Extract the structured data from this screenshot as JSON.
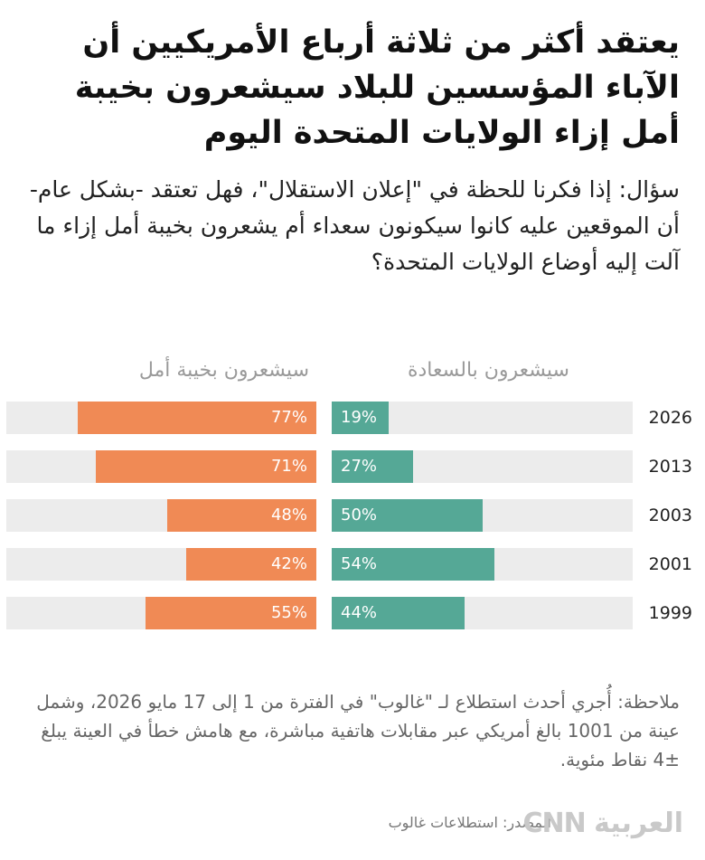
{
  "title": "يعتقد أكثر من ثلاثة أرباع الأمريكيين أن الآباء المؤسسين للبلاد سيشعرون بخيبة أمل إزاء الولايات المتحدة اليوم",
  "question": "سؤال: إذا فكرنا للحظة في \"إعلان الاستقلال\"، فهل تعتقد -بشكل عام- أن الموقعين عليه كانوا سيكونون سعداء أم يشعرون بخيبة أمل إزاء ما آلت إليه أوضاع الولايات المتحدة؟",
  "note": "ملاحظة: أُجري أحدث استطلاع لـ \"غالوب\" في الفترة من 1 إلى 17 مايو 2026، وشمل عينة من 1001 بالغ أمريكي عبر مقابلات هاتفية مباشرة، مع هامش خطأ في العينة يبلغ ±4 نقاط مئوية.",
  "source": "المصدر: استطلاعات غالوب",
  "logo": "CNN العربية",
  "colors": {
    "happy": "#55a896",
    "disappointed": "#f08a55",
    "track": "#ececec"
  },
  "chart_data": {
    "type": "bar",
    "categories": [
      "2026",
      "2013",
      "2003",
      "2001",
      "1999"
    ],
    "series": [
      {
        "name": "سيشعرون بالسعادة",
        "values": [
          19,
          27,
          50,
          54,
          44
        ]
      },
      {
        "name": "سيشعرون بخيبة أمل",
        "values": [
          77,
          71,
          48,
          42,
          55
        ]
      }
    ],
    "unit": "%",
    "xlim": [
      0,
      100
    ]
  }
}
